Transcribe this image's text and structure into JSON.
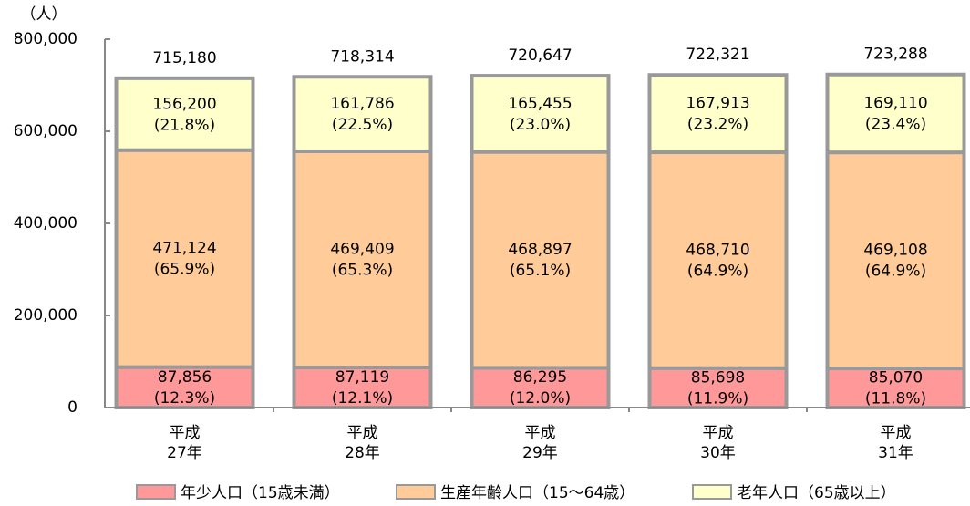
{
  "chart_data": {
    "type": "stacked_bar",
    "y_label": "（人）",
    "categories": [
      [
        "平成",
        "27年"
      ],
      [
        "平成",
        "28年"
      ],
      [
        "平成",
        "29年"
      ],
      [
        "平成",
        "30年"
      ],
      [
        "平成",
        "31年"
      ]
    ],
    "series": [
      {
        "name": "年少人口（15歳未満）",
        "color": "#ff9999",
        "values": [
          87856,
          87119,
          86295,
          85698,
          85070
        ],
        "value_labels": [
          "87,856",
          "87,119",
          "86,295",
          "85,698",
          "85,070"
        ],
        "percent_labels": [
          "(12.3%)",
          "(12.1%)",
          "(12.0%)",
          "(11.9%)",
          "(11.8%)"
        ]
      },
      {
        "name": "生産年齢人口（15～64歳）",
        "color": "#ffcc99",
        "values": [
          471124,
          469409,
          468897,
          468710,
          469108
        ],
        "value_labels": [
          "471,124",
          "469,409",
          "468,897",
          "468,710",
          "469,108"
        ],
        "percent_labels": [
          "(65.9%)",
          "(65.3%)",
          "(65.1%)",
          "(64.9%)",
          "(64.9%)"
        ]
      },
      {
        "name": "老年人口（65歳以上）",
        "color": "#ffffcc",
        "values": [
          156200,
          161786,
          165455,
          167913,
          169110
        ],
        "value_labels": [
          "156,200",
          "161,786",
          "165,455",
          "167,913",
          "169,110"
        ],
        "percent_labels": [
          "(21.8%)",
          "(22.5%)",
          "(23.0%)",
          "(23.2%)",
          "(23.4%)"
        ]
      }
    ],
    "totals": [
      715180,
      718314,
      720647,
      722321,
      723288
    ],
    "total_labels": [
      "715,180",
      "718,314",
      "720,647",
      "722,321",
      "723,288"
    ],
    "ylim": [
      0,
      800000
    ],
    "yticks": [
      0,
      {
        "value": 200000,
        "label": "200,000"
      },
      {
        "value": 400000,
        "label": "400,000"
      },
      {
        "value": 600000,
        "label": "600,000"
      },
      {
        "value": 800000,
        "label": "800,000"
      }
    ],
    "grid": false
  }
}
